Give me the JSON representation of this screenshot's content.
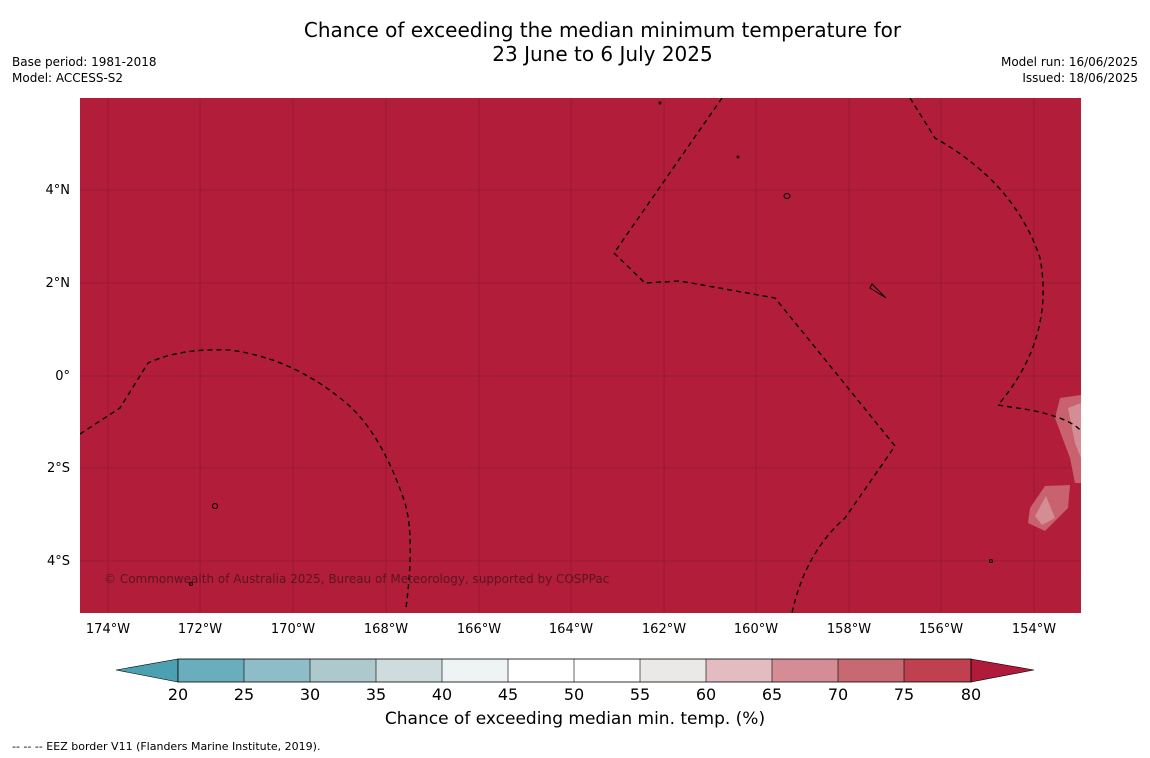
{
  "title": {
    "line1": "Chance of exceeding the median minimum temperature for",
    "line2": "23 June to 6 July 2025"
  },
  "meta_left": {
    "base_period": "Base period: 1981-2018",
    "model": "Model: ACCESS-S2"
  },
  "meta_right": {
    "model_run": "Model run: 16/06/2025",
    "issued": "Issued: 18/06/2025"
  },
  "map": {
    "background_color": "#b21d3a",
    "copyright": "© Commonwealth of Australia 2025, Bureau of Meteorology, supported by COSPPac",
    "lat_labels": [
      "4°N",
      "2°N",
      "0°",
      "2°S",
      "4°S"
    ],
    "lon_labels": [
      "174°W",
      "172°W",
      "170°W",
      "168°W",
      "166°W",
      "164°W",
      "162°W",
      "160°W",
      "158°W",
      "156°W",
      "154°W"
    ]
  },
  "colorbar": {
    "ticks": [
      "20",
      "25",
      "30",
      "35",
      "40",
      "45",
      "50",
      "55",
      "60",
      "65",
      "70",
      "75",
      "80"
    ],
    "label": "Chance of exceeding median min. temp. (%)",
    "colors": [
      "#4ba0b1",
      "#6aadbd",
      "#8ebdc7",
      "#adc9cd",
      "#cfdcde",
      "#eef3f4",
      "#ffffff",
      "#ffffff",
      "#ebe8e8",
      "#e2bcc0",
      "#d48d95",
      "#c86870",
      "#bf4150",
      "#b11b3a"
    ]
  },
  "footnote": "--  --  -- EEZ border V11 (Flanders Marine Institute, 2019)."
}
